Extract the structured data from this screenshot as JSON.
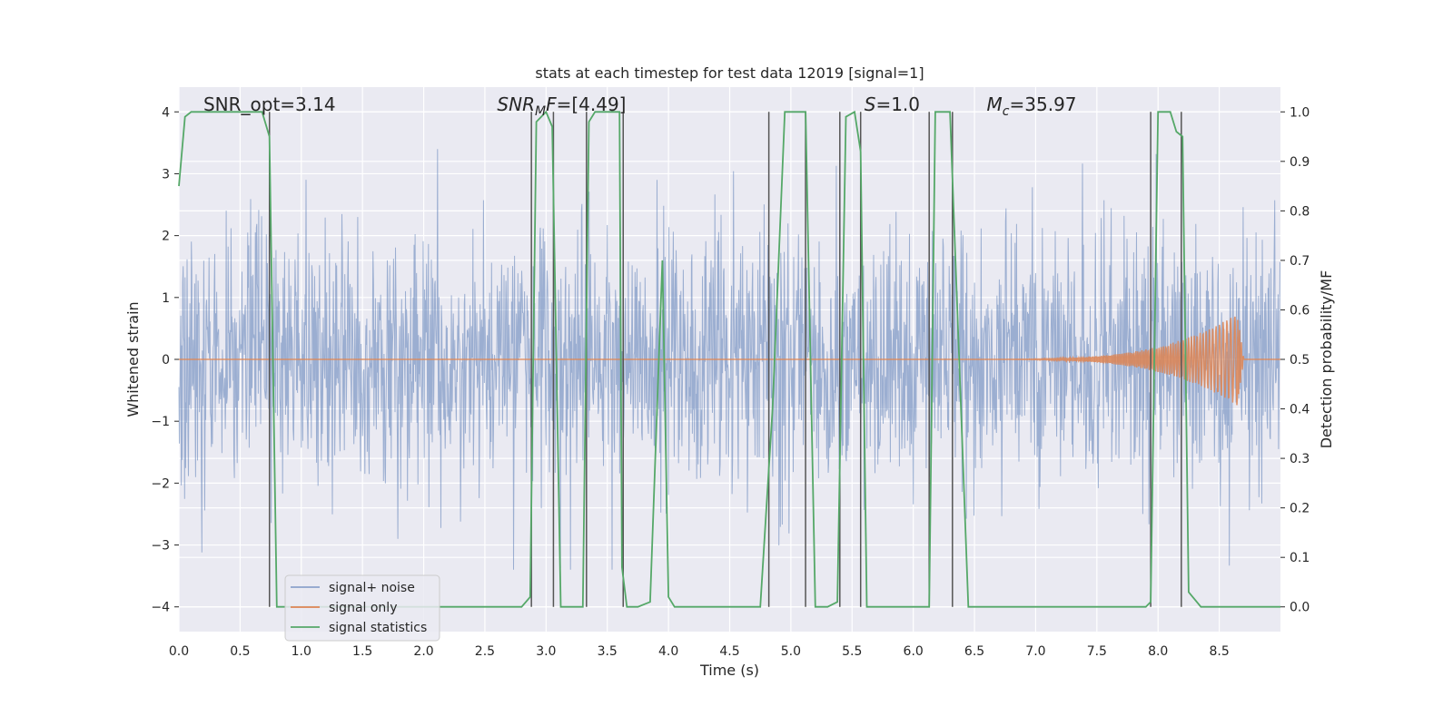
{
  "chart_data": {
    "type": "line",
    "title": "stats at each timestep for test data 12019 [signal=1]",
    "xlabel": "Time (s)",
    "ylabel": "Whitened strain",
    "y2label": "Detection probability/MF",
    "xlim": [
      0.0,
      9.0
    ],
    "ylim": [
      -4.4,
      4.4
    ],
    "y2lim": [
      -0.05,
      1.05
    ],
    "xticks": [
      0.0,
      0.5,
      1.0,
      1.5,
      2.0,
      2.5,
      3.0,
      3.5,
      4.0,
      4.5,
      5.0,
      5.5,
      6.0,
      6.5,
      7.0,
      7.5,
      8.0,
      8.5
    ],
    "xtick_labels": [
      "0.0",
      "0.5",
      "1.0",
      "1.5",
      "2.0",
      "2.5",
      "3.0",
      "3.5",
      "4.0",
      "4.5",
      "5.0",
      "5.5",
      "6.0",
      "6.5",
      "7.0",
      "7.5",
      "8.0",
      "8.5"
    ],
    "yticks": [
      -4,
      -3,
      -2,
      -1,
      0,
      1,
      2,
      3,
      4
    ],
    "ytick_labels": [
      "−4",
      "−3",
      "−2",
      "−1",
      "0",
      "1",
      "2",
      "3",
      "4"
    ],
    "y2ticks": [
      0.0,
      0.1,
      0.2,
      0.3,
      0.4,
      0.5,
      0.6,
      0.7,
      0.8,
      0.9,
      1.0
    ],
    "y2tick_labels": [
      "0.0",
      "0.1",
      "0.2",
      "0.3",
      "0.4",
      "0.5",
      "0.6",
      "0.7",
      "0.8",
      "0.9",
      "1.0"
    ],
    "grid": true,
    "legend_position": "lower-left",
    "annotations": [
      {
        "kind": "plain",
        "text": "SNR_opt=3.14",
        "x": 0.2
      },
      {
        "kind": "snr_mf",
        "base": "SNR",
        "sub": "M",
        "rest": "F=[4.49]",
        "x": 2.6
      },
      {
        "kind": "italic",
        "italic": "S",
        "rest": "=1.0",
        "x": 5.6
      },
      {
        "kind": "mc",
        "base": "M",
        "sub": "c",
        "rest": "=35.97",
        "x": 6.6
      }
    ],
    "series": [
      {
        "name": "signal+ noise",
        "color": "#4c72b0",
        "opacity": 0.5,
        "sample_rate": 256,
        "noise_sigma": 1.0,
        "noise_clip": 3.4,
        "noise_seed": 12019
      },
      {
        "name": "signal only",
        "color": "#dd8452",
        "chirp": {
          "t_start": 6.3,
          "t_merge": 8.65,
          "t_end": 8.7,
          "peak_amplitude": 0.75,
          "f0": 18,
          "f1": 65
        }
      },
      {
        "name": "signal statistics",
        "color": "#55a868",
        "axis": "right",
        "x": [
          0.0,
          0.05,
          0.1,
          0.2,
          0.3,
          0.4,
          0.5,
          0.6,
          0.68,
          0.74,
          0.8,
          0.9,
          1.0,
          2.8,
          2.87,
          2.92,
          3.0,
          3.05,
          3.12,
          3.2,
          3.3,
          3.35,
          3.4,
          3.5,
          3.6,
          3.62,
          3.66,
          3.75,
          3.85,
          3.95,
          4.0,
          4.05,
          4.1,
          4.75,
          4.85,
          4.95,
          5.05,
          5.12,
          5.2,
          5.3,
          5.38,
          5.45,
          5.52,
          5.57,
          5.62,
          5.75,
          6.13,
          6.18,
          6.25,
          6.3,
          6.45,
          7.9,
          7.94,
          8.0,
          8.1,
          8.15,
          8.2,
          8.25,
          8.35,
          8.45,
          9.0
        ],
        "y": [
          0.85,
          0.99,
          1.0,
          1.0,
          1.0,
          1.0,
          1.0,
          1.0,
          1.0,
          0.95,
          0.0,
          0.0,
          0.0,
          0.0,
          0.02,
          0.98,
          1.0,
          0.97,
          0.0,
          0.0,
          0.0,
          0.98,
          1.0,
          1.0,
          1.0,
          0.08,
          0.0,
          0.0,
          0.01,
          0.7,
          0.02,
          0.0,
          0.0,
          0.0,
          0.4,
          1.0,
          1.0,
          1.0,
          0.0,
          0.0,
          0.01,
          0.99,
          1.0,
          0.92,
          0.0,
          0.0,
          0.0,
          1.0,
          1.0,
          1.0,
          0.0,
          0.0,
          0.01,
          1.0,
          1.0,
          0.96,
          0.95,
          0.03,
          0.0,
          0.0,
          0.0
        ]
      }
    ],
    "vlines": {
      "color": "#555555",
      "x": [
        0.74,
        2.88,
        3.06,
        3.33,
        3.63,
        4.82,
        5.12,
        5.4,
        5.57,
        6.13,
        6.32,
        7.94,
        8.19
      ],
      "ymin": -4.0,
      "ymax": 4.0
    }
  }
}
